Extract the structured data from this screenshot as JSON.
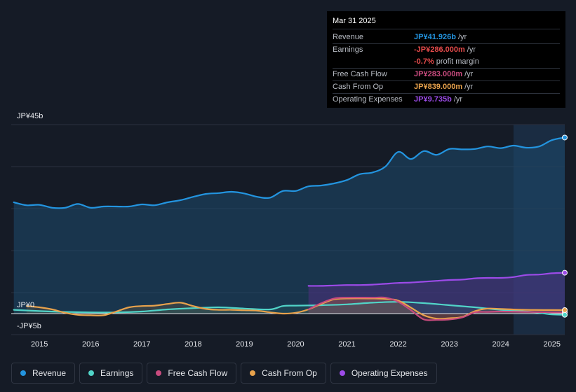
{
  "tooltip": {
    "date": "Mar 31 2025",
    "rows": [
      {
        "label": "Revenue",
        "value": "JP¥41.926b",
        "unit": "/yr",
        "color": "#2394df"
      },
      {
        "label": "Earnings",
        "value": "-JP¥286.000m",
        "unit": "/yr",
        "color": "#e64b4b"
      },
      {
        "label": "",
        "value": "-0.7%",
        "unit": "profit margin",
        "color": "#e64b4b"
      },
      {
        "label": "Free Cash Flow",
        "value": "JP¥283.000m",
        "unit": "/yr",
        "color": "#c84b7e"
      },
      {
        "label": "Cash From Op",
        "value": "JP¥839.000m",
        "unit": "/yr",
        "color": "#e8a24c"
      },
      {
        "label": "Operating Expenses",
        "value": "JP¥9.735b",
        "unit": "/yr",
        "color": "#9c4be8"
      }
    ]
  },
  "chart_data": {
    "type": "area",
    "title": "",
    "xlabel": "",
    "ylabel": "",
    "y_tick_labels": [
      "JP¥45b",
      "JP¥0",
      "-JP¥5b"
    ],
    "y_ticks": [
      45,
      0,
      -5
    ],
    "ylim": [
      -5,
      45
    ],
    "xlim": [
      2014.45,
      2025.25
    ],
    "x_tick_labels": [
      "2015",
      "2016",
      "2017",
      "2018",
      "2019",
      "2020",
      "2021",
      "2022",
      "2023",
      "2024",
      "2025"
    ],
    "highlight_from": 2024.25,
    "series": [
      {
        "name": "Revenue",
        "color": "#2394df",
        "x": [
          2014.5,
          2014.75,
          2015.0,
          2015.25,
          2015.5,
          2015.75,
          2016.0,
          2016.25,
          2016.5,
          2016.75,
          2017.0,
          2017.25,
          2017.5,
          2017.75,
          2018.0,
          2018.25,
          2018.5,
          2018.75,
          2019.0,
          2019.25,
          2019.5,
          2019.75,
          2020.0,
          2020.25,
          2020.5,
          2020.75,
          2021.0,
          2021.25,
          2021.5,
          2021.75,
          2022.0,
          2022.25,
          2022.5,
          2022.75,
          2023.0,
          2023.25,
          2023.5,
          2023.75,
          2024.0,
          2024.25,
          2024.5,
          2024.75,
          2025.0,
          2025.25
        ],
        "values": [
          26.5,
          25.8,
          25.9,
          25.2,
          25.2,
          26.1,
          25.2,
          25.5,
          25.5,
          25.5,
          26.0,
          25.8,
          26.5,
          27.0,
          27.8,
          28.5,
          28.7,
          29.0,
          28.6,
          27.8,
          27.6,
          29.2,
          29.2,
          30.3,
          30.5,
          31.0,
          31.8,
          33.2,
          33.6,
          35.0,
          38.5,
          36.8,
          38.7,
          37.8,
          39.2,
          39.1,
          39.2,
          39.8,
          39.4,
          40.0,
          39.5,
          39.8,
          41.3,
          41.926
        ]
      },
      {
        "name": "Earnings",
        "color": "#51d4c8",
        "x": [
          2014.5,
          2015.0,
          2015.5,
          2016.0,
          2016.5,
          2017.0,
          2017.5,
          2018.0,
          2018.5,
          2019.0,
          2019.5,
          2019.75,
          2020.0,
          2020.5,
          2021.0,
          2021.5,
          2022.0,
          2022.5,
          2023.0,
          2023.5,
          2024.0,
          2024.5,
          2024.75,
          2025.0,
          2025.25
        ],
        "values": [
          0.9,
          0.6,
          0.4,
          0.3,
          0.3,
          0.5,
          1.0,
          1.3,
          1.5,
          1.2,
          1.0,
          1.8,
          1.9,
          2.0,
          2.2,
          2.6,
          2.8,
          2.5,
          2.0,
          1.5,
          0.9,
          0.5,
          0.2,
          -0.2,
          -0.286
        ]
      },
      {
        "name": "Free Cash Flow",
        "color": "#c84b7e",
        "x": [
          2020.25,
          2020.5,
          2020.75,
          2021.0,
          2021.5,
          2021.75,
          2022.0,
          2022.25,
          2022.5,
          2022.75,
          2023.0,
          2023.25,
          2023.5,
          2023.75,
          2024.0,
          2024.5,
          2025.0,
          2025.25
        ],
        "values": [
          1.0,
          2.5,
          3.6,
          3.8,
          3.8,
          3.8,
          2.8,
          0.8,
          -1.4,
          -1.5,
          -1.4,
          -0.9,
          0.3,
          0.4,
          0.5,
          0.4,
          0.3,
          0.283
        ]
      },
      {
        "name": "Cash From Op",
        "color": "#e8a24c",
        "x": [
          2014.75,
          2015.0,
          2015.25,
          2015.5,
          2015.75,
          2016.0,
          2016.25,
          2016.5,
          2016.75,
          2017.0,
          2017.25,
          2017.5,
          2017.75,
          2018.0,
          2018.25,
          2018.5,
          2018.75,
          2019.0,
          2019.25,
          2019.5,
          2019.75,
          2020.0,
          2020.25,
          2020.5,
          2020.75,
          2021.0,
          2021.5,
          2021.75,
          2022.0,
          2022.25,
          2022.5,
          2022.75,
          2023.0,
          2023.25,
          2023.5,
          2023.75,
          2024.0,
          2024.5,
          2025.0,
          2025.25
        ],
        "values": [
          1.8,
          1.5,
          1.0,
          0.2,
          -0.3,
          -0.4,
          -0.4,
          0.5,
          1.5,
          1.8,
          1.9,
          2.3,
          2.6,
          1.8,
          1.1,
          0.9,
          0.9,
          0.8,
          0.7,
          0.3,
          0.0,
          0.2,
          1.0,
          2.3,
          3.4,
          3.6,
          3.6,
          3.5,
          3.1,
          1.4,
          -0.4,
          -1.2,
          -1.1,
          -0.8,
          0.6,
          1.2,
          1.1,
          0.9,
          0.85,
          0.839
        ]
      },
      {
        "name": "Operating Expenses",
        "color": "#9c4be8",
        "x": [
          2020.25,
          2020.5,
          2020.75,
          2021.0,
          2021.25,
          2021.5,
          2021.75,
          2022.0,
          2022.25,
          2022.5,
          2022.75,
          2023.0,
          2023.25,
          2023.5,
          2023.75,
          2024.0,
          2024.25,
          2024.5,
          2024.75,
          2025.0,
          2025.25
        ],
        "values": [
          6.6,
          6.6,
          6.7,
          6.8,
          6.8,
          6.9,
          7.1,
          7.3,
          7.4,
          7.6,
          7.8,
          8.0,
          8.1,
          8.4,
          8.5,
          8.5,
          8.7,
          9.2,
          9.3,
          9.6,
          9.735
        ]
      }
    ]
  },
  "legend": {
    "items": [
      {
        "label": "Revenue",
        "color": "#2394df"
      },
      {
        "label": "Earnings",
        "color": "#51d4c8"
      },
      {
        "label": "Free Cash Flow",
        "color": "#c84b7e"
      },
      {
        "label": "Cash From Op",
        "color": "#e8a24c"
      },
      {
        "label": "Operating Expenses",
        "color": "#9c4be8"
      }
    ]
  }
}
